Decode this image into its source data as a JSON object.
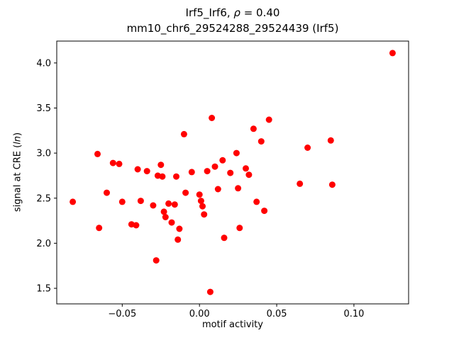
{
  "chart_data": {
    "type": "scatter",
    "title_line1": {
      "prefix": "Irf5_Irf6, ",
      "rho": "ρ",
      "suffix": " = 0.40"
    },
    "title_line2": "mm10_chr6_29524288_29524439 (Irf5)",
    "xlabel": "motif activity",
    "ylabel": {
      "prefix": "signal at CRE (",
      "italic": "ln",
      "suffix": ")"
    },
    "xlim": [
      -0.0924,
      0.1354
    ],
    "ylim": [
      1.3275,
      4.2425
    ],
    "xticks": [
      {
        "v": -0.05,
        "label": "−0.05"
      },
      {
        "v": 0.0,
        "label": "0.00"
      },
      {
        "v": 0.05,
        "label": "0.05"
      },
      {
        "v": 0.1,
        "label": "0.10"
      }
    ],
    "yticks": [
      {
        "v": 1.5,
        "label": "1.5"
      },
      {
        "v": 2.0,
        "label": "2.0"
      },
      {
        "v": 2.5,
        "label": "2.5"
      },
      {
        "v": 3.0,
        "label": "3.0"
      },
      {
        "v": 3.5,
        "label": "3.5"
      },
      {
        "v": 4.0,
        "label": "4.0"
      }
    ],
    "marker_color": "#ff0000",
    "grid": false,
    "legend": "none",
    "points": [
      [
        -0.082,
        2.46
      ],
      [
        -0.066,
        2.99
      ],
      [
        -0.065,
        2.17
      ],
      [
        -0.06,
        2.56
      ],
      [
        -0.056,
        2.89
      ],
      [
        -0.052,
        2.88
      ],
      [
        -0.05,
        2.46
      ],
      [
        -0.044,
        2.21
      ],
      [
        -0.041,
        2.2
      ],
      [
        -0.04,
        2.82
      ],
      [
        -0.038,
        2.47
      ],
      [
        -0.034,
        2.8
      ],
      [
        -0.03,
        2.42
      ],
      [
        -0.028,
        1.81
      ],
      [
        -0.027,
        2.75
      ],
      [
        -0.025,
        2.87
      ],
      [
        -0.024,
        2.74
      ],
      [
        -0.023,
        2.35
      ],
      [
        -0.022,
        2.29
      ],
      [
        -0.02,
        2.44
      ],
      [
        -0.018,
        2.23
      ],
      [
        -0.016,
        2.43
      ],
      [
        -0.015,
        2.74
      ],
      [
        -0.014,
        2.04
      ],
      [
        -0.013,
        2.16
      ],
      [
        -0.01,
        3.21
      ],
      [
        -0.009,
        2.56
      ],
      [
        -0.005,
        2.79
      ],
      [
        0.0,
        2.54
      ],
      [
        0.001,
        2.47
      ],
      [
        0.002,
        2.41
      ],
      [
        0.003,
        2.32
      ],
      [
        0.005,
        2.8
      ],
      [
        0.007,
        1.46
      ],
      [
        0.008,
        3.39
      ],
      [
        0.01,
        2.85
      ],
      [
        0.012,
        2.6
      ],
      [
        0.015,
        2.92
      ],
      [
        0.016,
        2.06
      ],
      [
        0.02,
        2.78
      ],
      [
        0.024,
        3.0
      ],
      [
        0.025,
        2.61
      ],
      [
        0.026,
        2.17
      ],
      [
        0.03,
        2.83
      ],
      [
        0.032,
        2.76
      ],
      [
        0.035,
        3.27
      ],
      [
        0.037,
        2.46
      ],
      [
        0.04,
        3.13
      ],
      [
        0.042,
        2.36
      ],
      [
        0.045,
        3.37
      ],
      [
        0.065,
        2.66
      ],
      [
        0.07,
        3.06
      ],
      [
        0.085,
        3.14
      ],
      [
        0.086,
        2.65
      ],
      [
        0.125,
        4.11
      ]
    ]
  }
}
